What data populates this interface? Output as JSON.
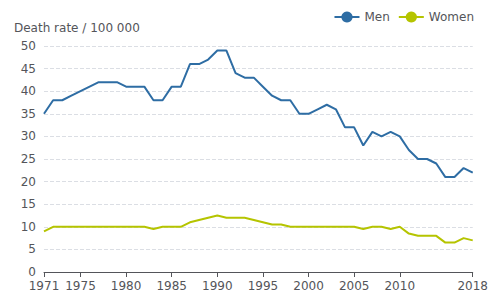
{
  "chart_data": {
    "type": "line",
    "ylabel": "Death rate / 100 000",
    "x": [
      1971,
      1972,
      1973,
      1974,
      1975,
      1976,
      1977,
      1978,
      1979,
      1980,
      1981,
      1982,
      1983,
      1984,
      1985,
      1986,
      1987,
      1988,
      1989,
      1990,
      1991,
      1992,
      1993,
      1994,
      1995,
      1996,
      1997,
      1998,
      1999,
      2000,
      2001,
      2002,
      2003,
      2004,
      2005,
      2006,
      2007,
      2008,
      2009,
      2010,
      2011,
      2012,
      2013,
      2014,
      2015,
      2016,
      2017,
      2018
    ],
    "series": [
      {
        "name": "Men",
        "color": "#2E6DA4",
        "values": [
          35,
          38,
          38,
          39,
          40,
          41,
          42,
          42,
          42,
          41,
          41,
          41,
          38,
          38,
          41,
          41,
          46,
          46,
          47,
          49,
          49,
          44,
          43,
          43,
          41,
          39,
          38,
          38,
          35,
          35,
          36,
          37,
          36,
          32,
          32,
          28,
          31,
          30,
          31,
          30,
          27,
          25,
          25,
          24,
          21,
          21,
          23,
          22
        ]
      },
      {
        "name": "Women",
        "color": "#B5C400",
        "values": [
          9,
          10,
          10,
          10,
          10,
          10,
          10,
          10,
          10,
          10,
          10,
          10,
          9.5,
          10,
          10,
          10,
          11,
          11.5,
          12,
          12.5,
          12,
          12,
          12,
          11.5,
          11,
          10.5,
          10.5,
          10,
          10,
          10,
          10,
          10,
          10,
          10,
          10,
          9.5,
          10,
          10,
          9.5,
          10,
          8.5,
          8,
          8,
          8,
          6.5,
          6.5,
          7.5,
          7
        ]
      }
    ],
    "xlim": [
      1971,
      2018
    ],
    "xticks": [
      1971,
      1975,
      1980,
      1985,
      1990,
      1995,
      2000,
      2005,
      2010,
      2018
    ],
    "ylim": [
      0,
      50
    ],
    "yticks": [
      0,
      5,
      10,
      15,
      20,
      25,
      30,
      35,
      40,
      45,
      50
    ],
    "grid": true,
    "legend": "upper right"
  }
}
